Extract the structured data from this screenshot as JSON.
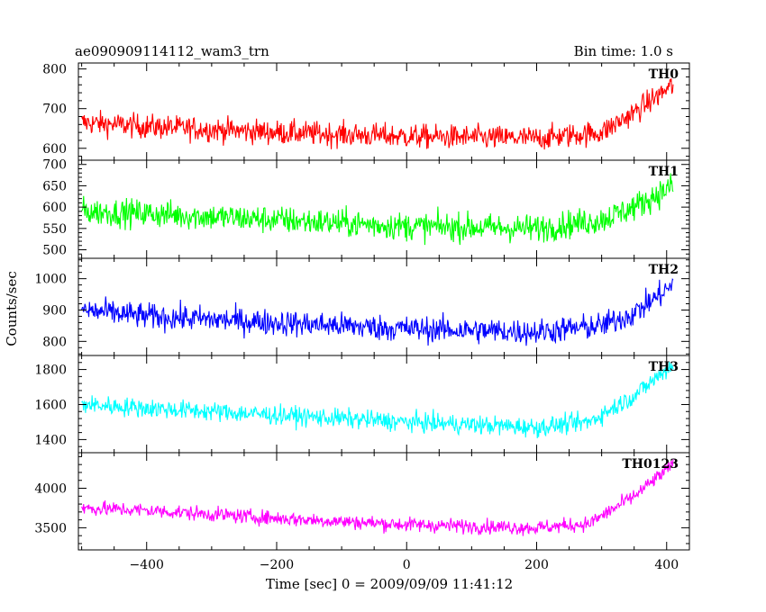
{
  "header": {
    "title": "ae090909114112_wam3_trn",
    "bin_time": "Bin time: 1.0 s"
  },
  "chart_data": {
    "type": "line",
    "xlabel": "Time [sec] 0 = 2009/09/09 11:41:12",
    "ylabel": "Counts/sec",
    "xlim": [
      -505,
      435
    ],
    "xticks": [
      -400,
      -200,
      0,
      200,
      400
    ],
    "panels": [
      {
        "name": "TH0",
        "color": "#ff0000",
        "ylim": [
          570,
          815
        ],
        "yticks": [
          600,
          700,
          800
        ],
        "x_range": [
          -500,
          410
        ],
        "trend": [
          [
            -500,
            665
          ],
          [
            -400,
            655
          ],
          [
            -200,
            640
          ],
          [
            0,
            630
          ],
          [
            200,
            625
          ],
          [
            300,
            640
          ],
          [
            350,
            690
          ],
          [
            410,
            760
          ]
        ],
        "noise": 28
      },
      {
        "name": "TH1",
        "color": "#00ff00",
        "ylim": [
          480,
          710
        ],
        "yticks": [
          500,
          550,
          600,
          650,
          700
        ],
        "x_range": [
          -500,
          410
        ],
        "trend": [
          [
            -500,
            590
          ],
          [
            -400,
            585
          ],
          [
            -200,
            570
          ],
          [
            0,
            555
          ],
          [
            200,
            550
          ],
          [
            300,
            570
          ],
          [
            350,
            600
          ],
          [
            410,
            650
          ]
        ],
        "noise": 30
      },
      {
        "name": "TH2",
        "color": "#0000ff",
        "ylim": [
          755,
          1065
        ],
        "yticks": [
          800,
          900,
          1000
        ],
        "x_range": [
          -500,
          410
        ],
        "trend": [
          [
            -500,
            900
          ],
          [
            -400,
            880
          ],
          [
            -200,
            860
          ],
          [
            0,
            840
          ],
          [
            200,
            830
          ],
          [
            300,
            850
          ],
          [
            350,
            890
          ],
          [
            410,
            980
          ]
        ],
        "noise": 38
      },
      {
        "name": "TH3",
        "color": "#00ffff",
        "ylim": [
          1325,
          1880
        ],
        "yticks": [
          1400,
          1600,
          1800
        ],
        "x_range": [
          -500,
          410
        ],
        "trend": [
          [
            -500,
            1600
          ],
          [
            -400,
            1580
          ],
          [
            -200,
            1540
          ],
          [
            0,
            1500
          ],
          [
            200,
            1470
          ],
          [
            280,
            1500
          ],
          [
            350,
            1650
          ],
          [
            410,
            1830
          ]
        ],
        "noise": 50
      },
      {
        "name": "TH0123",
        "color": "#ff00ff",
        "ylim": [
          3220,
          4450
        ],
        "yticks": [
          3500,
          4000
        ],
        "x_range": [
          -500,
          410
        ],
        "trend": [
          [
            -500,
            3750
          ],
          [
            -400,
            3720
          ],
          [
            -200,
            3620
          ],
          [
            0,
            3540
          ],
          [
            200,
            3500
          ],
          [
            280,
            3550
          ],
          [
            350,
            3900
          ],
          [
            410,
            4300
          ]
        ],
        "noise": 85
      }
    ]
  }
}
